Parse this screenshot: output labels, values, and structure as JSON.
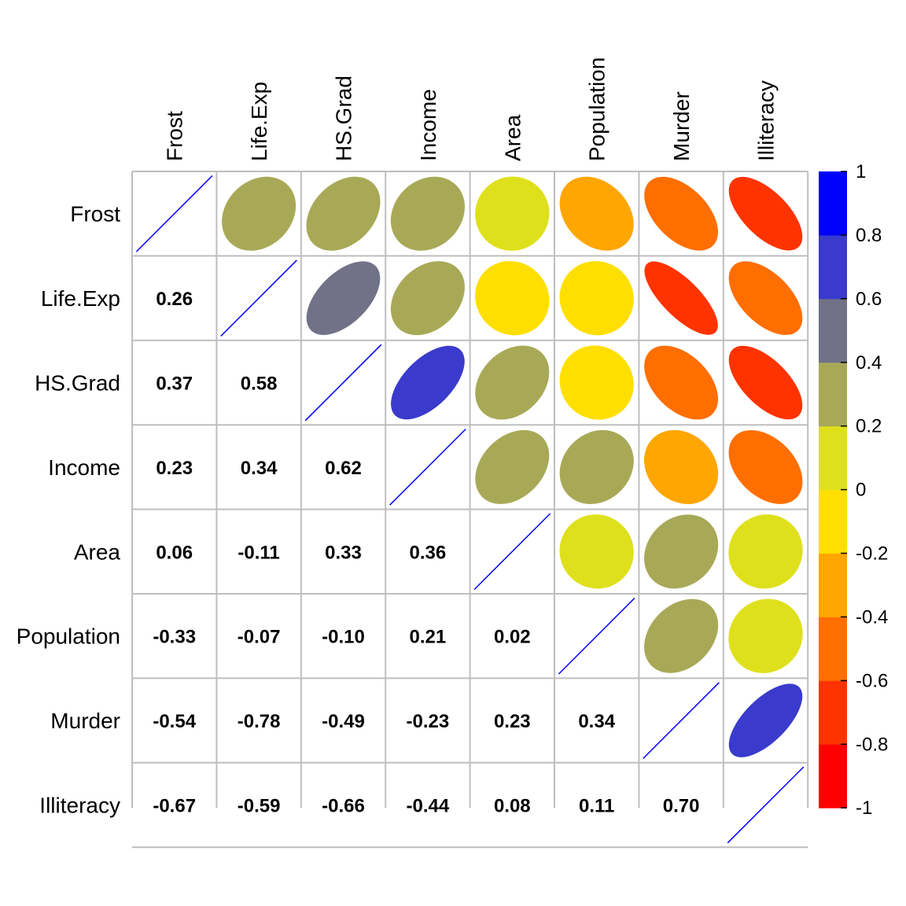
{
  "chart_data": {
    "type": "heatmap",
    "title": "",
    "variables": [
      "Frost",
      "Life.Exp",
      "HS.Grad",
      "Income",
      "Area",
      "Population",
      "Murder",
      "Illiteracy"
    ],
    "correlation_matrix": [
      [
        1.0,
        0.26,
        0.37,
        0.23,
        0.06,
        -0.33,
        -0.54,
        -0.67
      ],
      [
        0.26,
        1.0,
        0.58,
        0.34,
        -0.11,
        -0.07,
        -0.78,
        -0.59
      ],
      [
        0.37,
        0.58,
        1.0,
        0.62,
        0.33,
        -0.1,
        -0.49,
        -0.66
      ],
      [
        0.23,
        0.34,
        0.62,
        1.0,
        0.36,
        0.21,
        -0.23,
        -0.44
      ],
      [
        0.06,
        -0.11,
        0.33,
        0.36,
        1.0,
        0.02,
        0.23,
        0.08
      ],
      [
        -0.33,
        -0.07,
        -0.1,
        0.21,
        0.02,
        1.0,
        0.34,
        0.11
      ],
      [
        -0.54,
        -0.78,
        -0.49,
        -0.23,
        0.23,
        0.34,
        1.0,
        0.7
      ],
      [
        -0.67,
        -0.59,
        -0.66,
        -0.44,
        0.08,
        0.11,
        0.7,
        1.0
      ]
    ],
    "number_labels": [
      [
        null,
        null,
        null,
        null,
        null,
        null,
        null,
        null
      ],
      [
        "0.26",
        null,
        null,
        null,
        null,
        null,
        null,
        null
      ],
      [
        "0.37",
        "0.58",
        null,
        null,
        null,
        null,
        null,
        null
      ],
      [
        "0.23",
        "0.34",
        "0.62",
        null,
        null,
        null,
        null,
        null
      ],
      [
        "0.06",
        "-0.11",
        "0.33",
        "0.36",
        null,
        null,
        null,
        null
      ],
      [
        "-0.33",
        "-0.07",
        "-0.10",
        "0.21",
        "0.02",
        null,
        null,
        null
      ],
      [
        "-0.54",
        "-0.78",
        "-0.49",
        "-0.23",
        "0.23",
        "0.34",
        null,
        null
      ],
      [
        "-0.67",
        "-0.59",
        "-0.66",
        "-0.44",
        "0.08",
        "0.11",
        "0.70",
        null
      ]
    ],
    "upper_panel": "ellipse",
    "lower_panel": "number",
    "diagonal": "line",
    "colorbar": {
      "range": [
        -1,
        1
      ],
      "position": "right",
      "tick_labels": [
        "1",
        "0.8",
        "0.6",
        "0.4",
        "0.2",
        "0",
        "-0.2",
        "-0.4",
        "-0.6",
        "-0.8",
        "-1"
      ],
      "bin_colors": [
        "#ff0000",
        "#ff3300",
        "#ff6e00",
        "#ffa600",
        "#ffdf00",
        "#dfe01c",
        "#a8a957",
        "#717188",
        "#3a3acc",
        "#0000ff"
      ]
    },
    "diagonal_line_color": "#0000ff",
    "grid_color": "#bebebe"
  }
}
